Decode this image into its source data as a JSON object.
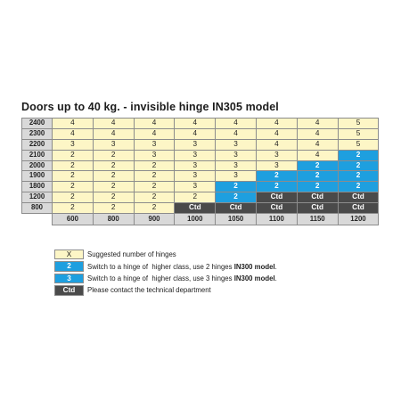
{
  "title": "Doors up to 40 kg. - invisible hinge IN305 model",
  "table": {
    "rows": [
      {
        "label": "2400",
        "cells": [
          {
            "t": "4",
            "k": "x"
          },
          {
            "t": "4",
            "k": "x"
          },
          {
            "t": "4",
            "k": "x"
          },
          {
            "t": "4",
            "k": "x"
          },
          {
            "t": "4",
            "k": "x"
          },
          {
            "t": "4",
            "k": "x"
          },
          {
            "t": "4",
            "k": "x"
          },
          {
            "t": "5",
            "k": "x"
          }
        ]
      },
      {
        "label": "2300",
        "cells": [
          {
            "t": "4",
            "k": "x"
          },
          {
            "t": "4",
            "k": "x"
          },
          {
            "t": "4",
            "k": "x"
          },
          {
            "t": "4",
            "k": "x"
          },
          {
            "t": "4",
            "k": "x"
          },
          {
            "t": "4",
            "k": "x"
          },
          {
            "t": "4",
            "k": "x"
          },
          {
            "t": "5",
            "k": "x"
          }
        ]
      },
      {
        "label": "2200",
        "cells": [
          {
            "t": "3",
            "k": "x"
          },
          {
            "t": "3",
            "k": "x"
          },
          {
            "t": "3",
            "k": "x"
          },
          {
            "t": "3",
            "k": "x"
          },
          {
            "t": "3",
            "k": "x"
          },
          {
            "t": "4",
            "k": "x"
          },
          {
            "t": "4",
            "k": "x"
          },
          {
            "t": "5",
            "k": "x"
          }
        ]
      },
      {
        "label": "2100",
        "cells": [
          {
            "t": "2",
            "k": "x"
          },
          {
            "t": "2",
            "k": "x"
          },
          {
            "t": "3",
            "k": "x"
          },
          {
            "t": "3",
            "k": "x"
          },
          {
            "t": "3",
            "k": "x"
          },
          {
            "t": "3",
            "k": "x"
          },
          {
            "t": "4",
            "k": "x"
          },
          {
            "t": "2",
            "k": "2"
          }
        ]
      },
      {
        "label": "2000",
        "cells": [
          {
            "t": "2",
            "k": "x"
          },
          {
            "t": "2",
            "k": "x"
          },
          {
            "t": "2",
            "k": "x"
          },
          {
            "t": "3",
            "k": "x"
          },
          {
            "t": "3",
            "k": "x"
          },
          {
            "t": "3",
            "k": "x"
          },
          {
            "t": "2",
            "k": "2"
          },
          {
            "t": "2",
            "k": "2"
          }
        ]
      },
      {
        "label": "1900",
        "cells": [
          {
            "t": "2",
            "k": "x"
          },
          {
            "t": "2",
            "k": "x"
          },
          {
            "t": "2",
            "k": "x"
          },
          {
            "t": "3",
            "k": "x"
          },
          {
            "t": "3",
            "k": "x"
          },
          {
            "t": "2",
            "k": "2"
          },
          {
            "t": "2",
            "k": "2"
          },
          {
            "t": "2",
            "k": "2"
          }
        ]
      },
      {
        "label": "1800",
        "cells": [
          {
            "t": "2",
            "k": "x"
          },
          {
            "t": "2",
            "k": "x"
          },
          {
            "t": "2",
            "k": "x"
          },
          {
            "t": "3",
            "k": "x"
          },
          {
            "t": "2",
            "k": "2"
          },
          {
            "t": "2",
            "k": "2"
          },
          {
            "t": "2",
            "k": "2"
          },
          {
            "t": "2",
            "k": "2"
          }
        ]
      },
      {
        "label": "1200",
        "cells": [
          {
            "t": "2",
            "k": "x"
          },
          {
            "t": "2",
            "k": "x"
          },
          {
            "t": "2",
            "k": "x"
          },
          {
            "t": "2",
            "k": "x"
          },
          {
            "t": "2",
            "k": "2"
          },
          {
            "t": "Ctd",
            "k": "ctd"
          },
          {
            "t": "Ctd",
            "k": "ctd"
          },
          {
            "t": "Ctd",
            "k": "ctd"
          }
        ]
      },
      {
        "label": "800",
        "cells": [
          {
            "t": "2",
            "k": "x"
          },
          {
            "t": "2",
            "k": "x"
          },
          {
            "t": "2",
            "k": "x"
          },
          {
            "t": "Ctd",
            "k": "ctd"
          },
          {
            "t": "Ctd",
            "k": "ctd"
          },
          {
            "t": "Ctd",
            "k": "ctd"
          },
          {
            "t": "Ctd",
            "k": "ctd"
          },
          {
            "t": "Ctd",
            "k": "ctd"
          }
        ]
      }
    ],
    "columns": [
      "600",
      "800",
      "900",
      "1000",
      "1050",
      "1100",
      "1150",
      "1200"
    ]
  },
  "legend": [
    {
      "swatch": "X",
      "kind": "x",
      "text": "Suggested number of hinges",
      "bold": ""
    },
    {
      "swatch": "2",
      "kind": "2",
      "text": "Switch to a hinge of  higher class, use 2 hinges ",
      "bold": "IN300 model",
      "tail": "."
    },
    {
      "swatch": "3",
      "kind": "3",
      "text": "Switch to a hinge of  higher class, use 3 hinges ",
      "bold": "IN300 model",
      "tail": "."
    },
    {
      "swatch": "Ctd",
      "kind": "ctd",
      "text": "Please contact the technical department",
      "bold": ""
    }
  ],
  "colors": {
    "suggested": "#fdf6c6",
    "higher_class": "#1e9fdf",
    "contact": "#4a4a4a",
    "header": "#d9d9d9"
  }
}
